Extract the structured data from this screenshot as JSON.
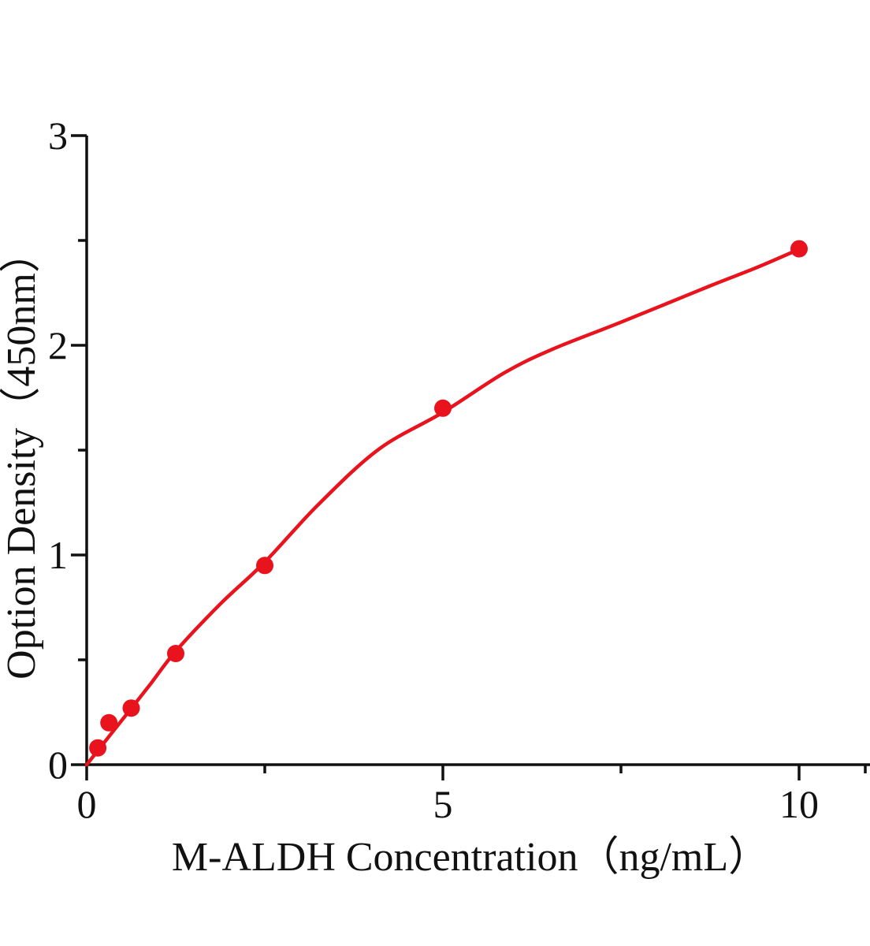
{
  "chart_data": {
    "type": "scatter",
    "title": "",
    "xlabel": "M-ALDH Concentration（ng/mL）",
    "ylabel": "Option Density（450nm）",
    "xlim": [
      0,
      11
    ],
    "ylim": [
      0,
      3
    ],
    "grid": false,
    "legend": null,
    "x_ticks_major": [
      0,
      5,
      10
    ],
    "x_ticks_minor": [
      2.5,
      7.5
    ],
    "y_ticks_major": [
      0,
      1,
      2,
      3
    ],
    "y_ticks_minor": [
      0.5,
      1.5,
      2.5
    ],
    "points": {
      "x": [
        0.156,
        0.312,
        0.625,
        1.25,
        2.5,
        5,
        10
      ],
      "y": [
        0.08,
        0.2,
        0.27,
        0.53,
        0.95,
        1.7,
        2.46
      ]
    },
    "fit_curve": [
      [
        0,
        0
      ],
      [
        0.156,
        0.067
      ],
      [
        0.312,
        0.134
      ],
      [
        0.625,
        0.268
      ],
      [
        0.9,
        0.387
      ],
      [
        1.25,
        0.541
      ],
      [
        1.875,
        0.766
      ],
      [
        2.5,
        0.966
      ],
      [
        3.25,
        1.24
      ],
      [
        4.1,
        1.504
      ],
      [
        5.0,
        1.68
      ],
      [
        5.86,
        1.868
      ],
      [
        6.53,
        1.98
      ],
      [
        7.5,
        2.11
      ],
      [
        8.74,
        2.282
      ],
      [
        9.4,
        2.37
      ],
      [
        10,
        2.458
      ]
    ],
    "colors": {
      "series": "#e8131d",
      "axis": "#111111",
      "background": "#ffffff"
    }
  }
}
